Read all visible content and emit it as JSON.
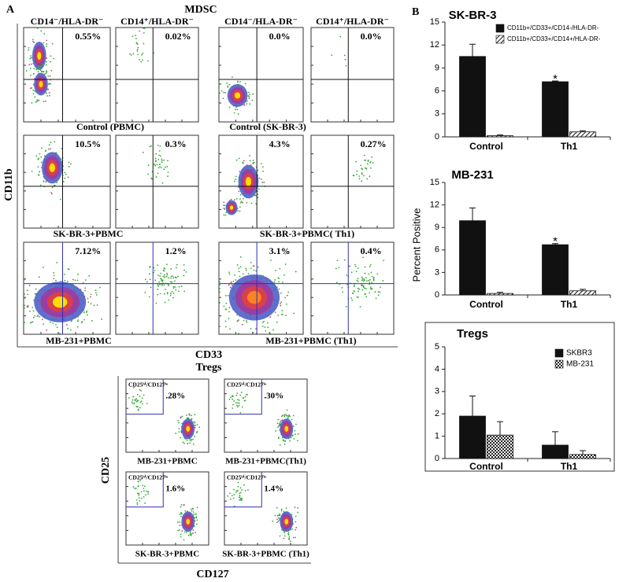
{
  "panel_a": {
    "label": "A",
    "title": "MDSC",
    "column_headers": [
      "CD14⁻/HLA-DR⁻",
      "CD14⁺/HLA-DR⁻",
      "CD14⁻/HLA-DR⁻",
      "CD14⁺/HLA-DR⁻"
    ],
    "percents": [
      "0.55%",
      "0.02%",
      "0.0%",
      "0.0%",
      "10.5%",
      "0.3%",
      "4.3%",
      "0.27%",
      "7.12%",
      "1.2%",
      "3.1%",
      "0.4%"
    ],
    "captions": [
      "Control (PBMC)",
      "Control (SK-BR-3)",
      "SK-BR-3+PBMC",
      "SK-BR-3+PBMC( Th1)",
      "MB-231+PBMC",
      "MB-231+PBMC (Th1)"
    ],
    "y_axis": "CD11b",
    "x_axis": "CD33"
  },
  "tregs": {
    "title": "Tregs",
    "gate_label": "CD25ʰⁱ/CD127ˡᵒ",
    "percents": [
      ".28%",
      ".30%",
      "1.6%",
      "1.4%"
    ],
    "captions": [
      "MB-231+PBMC",
      "MB-231+PBMC(Th1)",
      "SK-BR-3+PBMC",
      "SK-BR-3+PBMC (Th1)"
    ],
    "y_axis": "CD25",
    "x_axis": "CD127"
  },
  "panel_b_label": "B",
  "chart_data": [
    {
      "type": "bar",
      "title": "SK-BR-3",
      "categories": [
        "Control",
        "Th1"
      ],
      "series": [
        {
          "name": "CD11b+/CD33+/CD14-/HLA-DR-",
          "color": "#111111",
          "pattern": "solid",
          "values": [
            10.5,
            7.2
          ],
          "errors": [
            1.6,
            0.1
          ]
        },
        {
          "name": "CD11b+/CD33+/CD14+/HLA-DR-",
          "color": "#ffffff",
          "pattern": "hatch",
          "values": [
            0.15,
            0.65
          ],
          "errors": [
            0.1,
            0.15
          ]
        }
      ],
      "ylim": [
        0,
        15
      ],
      "yticks": [
        0,
        3,
        6,
        9,
        12,
        15
      ],
      "annotation": "*",
      "legend": "top-right"
    },
    {
      "type": "bar",
      "title": "MB-231",
      "ylabel": "Percent Positive",
      "categories": [
        "Control",
        "Th1"
      ],
      "series": [
        {
          "color": "#111111",
          "pattern": "solid",
          "values": [
            9.9,
            6.7
          ],
          "errors": [
            1.7,
            0.15
          ]
        },
        {
          "color": "#ffffff",
          "pattern": "hatch",
          "values": [
            0.2,
            0.55
          ],
          "errors": [
            0.15,
            0.2
          ]
        }
      ],
      "ylim": [
        0,
        15
      ],
      "yticks": [
        0,
        3,
        6,
        9,
        12,
        15
      ],
      "annotation": "*"
    },
    {
      "type": "bar",
      "title": "Tregs",
      "categories": [
        "Control",
        "Th1"
      ],
      "series": [
        {
          "name": "SKBR3",
          "color": "#111111",
          "pattern": "solid",
          "values": [
            1.9,
            0.6
          ],
          "errors": [
            0.9,
            0.6
          ]
        },
        {
          "name": "MB-231",
          "color": "#ffffff",
          "pattern": "check",
          "values": [
            1.05,
            0.18
          ],
          "errors": [
            0.6,
            0.17
          ]
        }
      ],
      "ylim": [
        0,
        5
      ],
      "yticks": [
        0,
        1,
        2,
        3,
        4,
        5
      ],
      "legend": "top-right",
      "frame": true
    }
  ]
}
